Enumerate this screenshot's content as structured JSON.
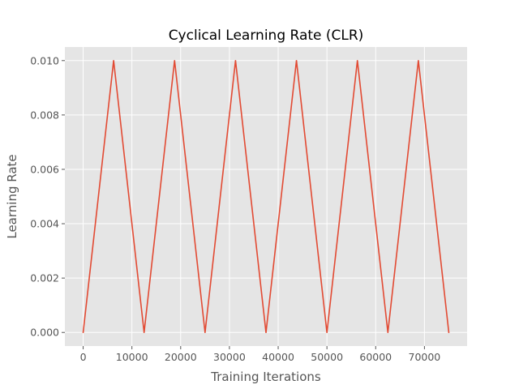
{
  "chart_data": {
    "type": "line",
    "title": "Cyclical Learning Rate (CLR)",
    "xlabel": "Training Iterations",
    "ylabel": "Learning Rate",
    "xlim": [
      -3750,
      78750
    ],
    "ylim": [
      -0.0005,
      0.0105
    ],
    "xticks": [
      0,
      10000,
      20000,
      30000,
      40000,
      50000,
      60000,
      70000
    ],
    "xtick_labels": [
      "0",
      "10000",
      "20000",
      "30000",
      "40000",
      "50000",
      "60000",
      "70000"
    ],
    "yticks": [
      0.0,
      0.002,
      0.004,
      0.006,
      0.008,
      0.01
    ],
    "ytick_labels": [
      "0.000",
      "0.002",
      "0.004",
      "0.006",
      "0.008",
      "0.010"
    ],
    "grid": true,
    "style": {
      "background": "#E5E5E5",
      "grid_color": "#FFFFFF",
      "line_color": "#E24A33"
    },
    "series": [
      {
        "x": [
          0,
          6250,
          12500,
          18750,
          25000,
          31250,
          37500,
          43750,
          50000,
          56250,
          62500,
          68750,
          75000
        ],
        "y": [
          0.0,
          0.01,
          0.0,
          0.01,
          0.0,
          0.01,
          0.0,
          0.01,
          0.0,
          0.01,
          0.0,
          0.01,
          0.0
        ]
      }
    ]
  }
}
